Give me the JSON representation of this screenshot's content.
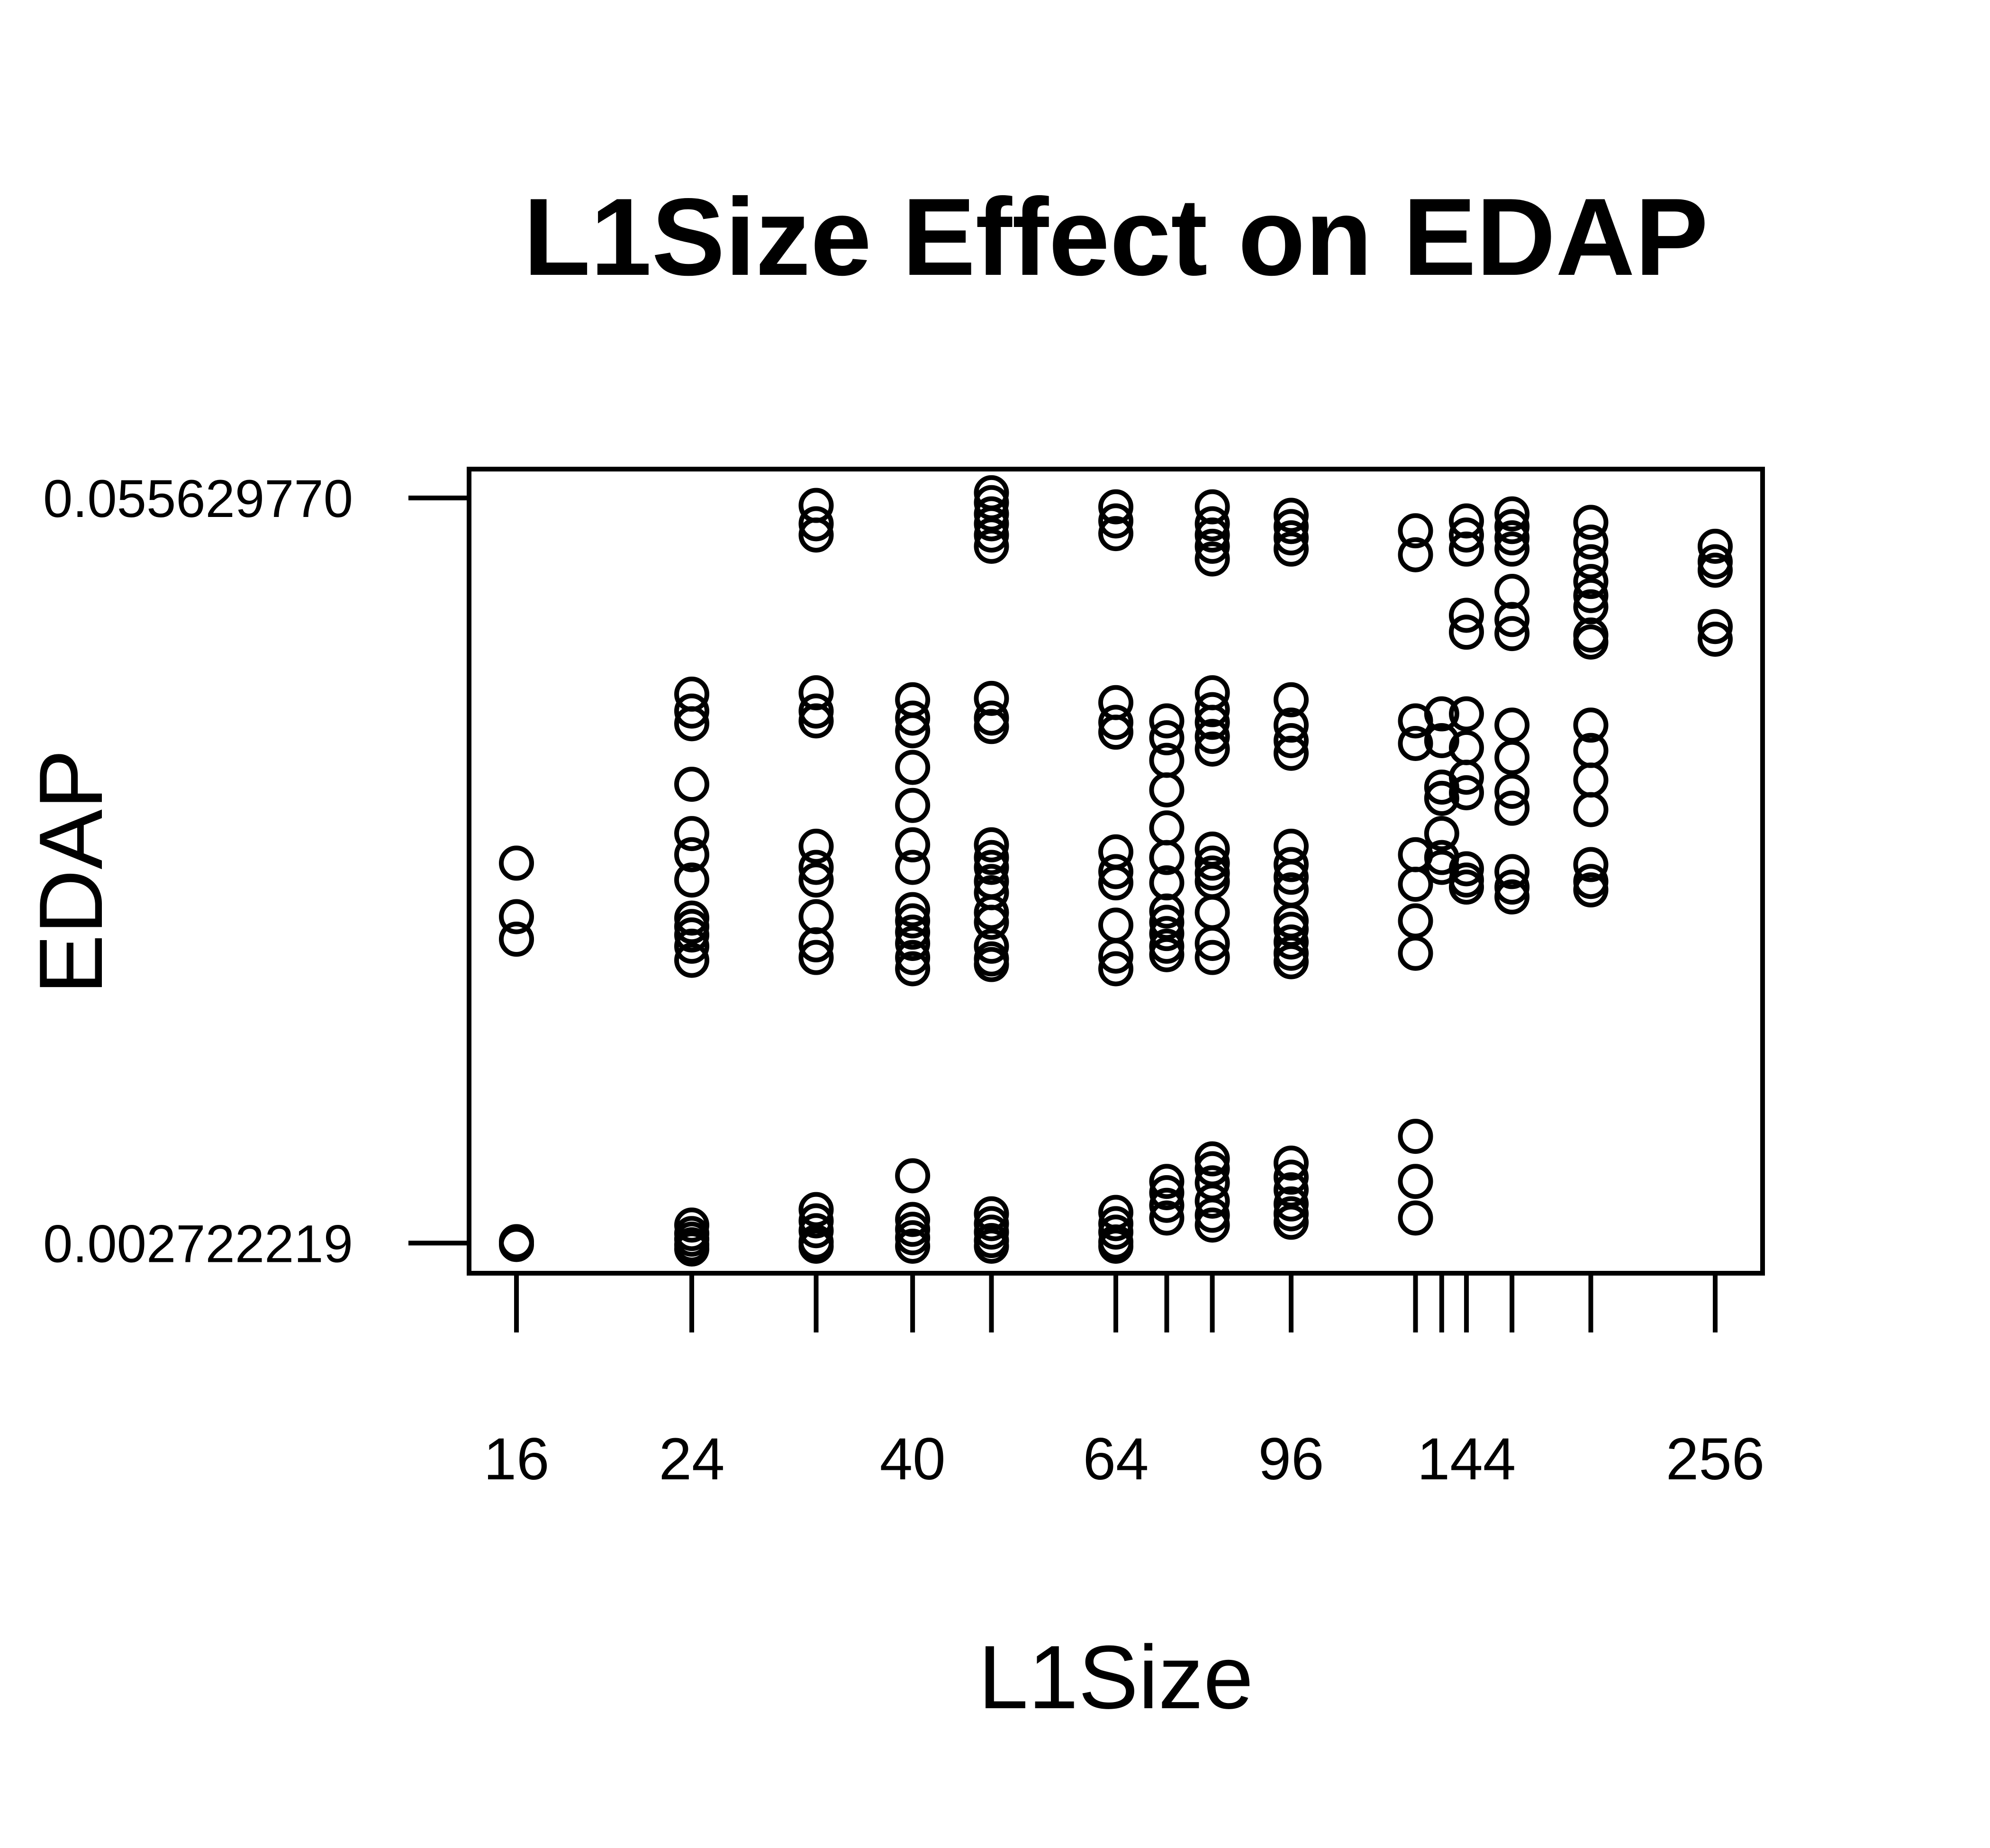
{
  "chart_data": {
    "type": "scatter",
    "title": "L1Size Effect on EDAP",
    "xlabel": "L1Size",
    "ylabel": "EDAP",
    "x_scale": "log",
    "x_tick_positions": [
      16,
      24,
      32,
      40,
      48,
      64,
      72,
      80,
      96,
      128,
      136,
      144,
      160,
      192,
      256
    ],
    "x_tick_labels": [
      "16",
      "24",
      "40",
      "64",
      "96",
      "144",
      "256"
    ],
    "x_tick_label_values": [
      16,
      24,
      40,
      64,
      96,
      144,
      256
    ],
    "y_tick_labels": [
      "0.055629770",
      "0.002722219"
    ],
    "y_tick_values": [
      0.05562977,
      0.002722219
    ],
    "ylim": [
      0.00058,
      0.05768
    ],
    "grid": false,
    "legend": "none",
    "marker": "open-circle",
    "color": "#000000",
    "groups": [
      {
        "x": 16,
        "y": [
          0.0297,
          0.0259,
          0.0243,
          0.00282,
          0.00262
        ]
      },
      {
        "x": 24,
        "y": [
          0.0417,
          0.0405,
          0.0396,
          0.0353,
          0.0318,
          0.0303,
          0.0285,
          0.0258,
          0.0252,
          0.0246,
          0.0238,
          0.0228,
          0.004,
          0.0034,
          0.003,
          0.0026,
          0.0023
        ]
      },
      {
        "x": 32,
        "y": [
          0.0551,
          0.0538,
          0.053,
          0.0418,
          0.0405,
          0.0398,
          0.0309,
          0.0294,
          0.0285,
          0.0259,
          0.0239,
          0.023,
          0.0051,
          0.0043,
          0.0036,
          0.0028,
          0.0025
        ]
      },
      {
        "x": 40,
        "y": [
          0.0413,
          0.04,
          0.0391,
          0.0365,
          0.0338,
          0.031,
          0.0294,
          0.0264,
          0.0256,
          0.0248,
          0.024,
          0.023,
          0.0222,
          0.0075,
          0.0044,
          0.0037,
          0.0031,
          0.0025
        ]
      },
      {
        "x": 48,
        "y": [
          0.056,
          0.0553,
          0.0545,
          0.0538,
          0.053,
          0.0522,
          0.0414,
          0.04,
          0.0394,
          0.031,
          0.0301,
          0.0294,
          0.0284,
          0.0276,
          0.0262,
          0.0255,
          0.0238,
          0.0229,
          0.0225,
          0.0048,
          0.0041,
          0.0035,
          0.0029,
          0.0025
        ]
      },
      {
        "x": 64,
        "y": [
          0.055,
          0.054,
          0.0531,
          0.0411,
          0.0397,
          0.039,
          0.0305,
          0.0291,
          0.0283,
          0.0253,
          0.0231,
          0.0222,
          0.0049,
          0.0041,
          0.0035,
          0.0028,
          0.0025
        ]
      },
      {
        "x": 72,
        "y": [
          0.0398,
          0.0386,
          0.037,
          0.0349,
          0.0322,
          0.0301,
          0.0283,
          0.0263,
          0.0255,
          0.0247,
          0.0238,
          0.0232,
          0.0071,
          0.0063,
          0.0054,
          0.0045
        ]
      },
      {
        "x": 80,
        "y": [
          0.055,
          0.0538,
          0.053,
          0.0522,
          0.0513,
          0.0418,
          0.0406,
          0.0397,
          0.0387,
          0.0378,
          0.0307,
          0.0297,
          0.029,
          0.0284,
          0.0262,
          0.024,
          0.023,
          0.0087,
          0.008,
          0.007,
          0.0057,
          0.0047,
          0.004
        ]
      },
      {
        "x": 96,
        "y": [
          0.0544,
          0.0536,
          0.0528,
          0.052,
          0.0413,
          0.0395,
          0.0384,
          0.0375,
          0.0309,
          0.0296,
          0.0287,
          0.0278,
          0.0256,
          0.025,
          0.0241,
          0.0233,
          0.0227,
          0.0084,
          0.0074,
          0.0065,
          0.0055,
          0.0048,
          0.0042
        ]
      },
      {
        "x": 128,
        "y": [
          0.0533,
          0.0516,
          0.0398,
          0.0382,
          0.0303,
          0.0282,
          0.0256,
          0.0233,
          0.0103,
          0.0071,
          0.0045
        ]
      },
      {
        "x": 136,
        "y": [
          0.0403,
          0.0384,
          0.0351,
          0.0343,
          0.0318,
          0.0301,
          0.0294
        ]
      },
      {
        "x": 144,
        "y": [
          0.054,
          0.053,
          0.052,
          0.0473,
          0.0461,
          0.0403,
          0.0379,
          0.0358,
          0.0347,
          0.0293,
          0.0285,
          0.028
        ]
      },
      {
        "x": 160,
        "y": [
          0.0545,
          0.0536,
          0.0528,
          0.052,
          0.049,
          0.047,
          0.046,
          0.0395,
          0.0372,
          0.0348,
          0.0336,
          0.0291,
          0.028,
          0.0273
        ]
      },
      {
        "x": 192,
        "y": [
          0.0539,
          0.0525,
          0.0511,
          0.0497,
          0.0487,
          0.0479,
          0.0459,
          0.0454,
          0.0395,
          0.0377,
          0.0356,
          0.0335,
          0.0296,
          0.0284,
          0.0278
        ]
      },
      {
        "x": 256,
        "y": [
          0.0522,
          0.0511,
          0.0505,
          0.0465,
          0.0456
        ]
      }
    ]
  }
}
